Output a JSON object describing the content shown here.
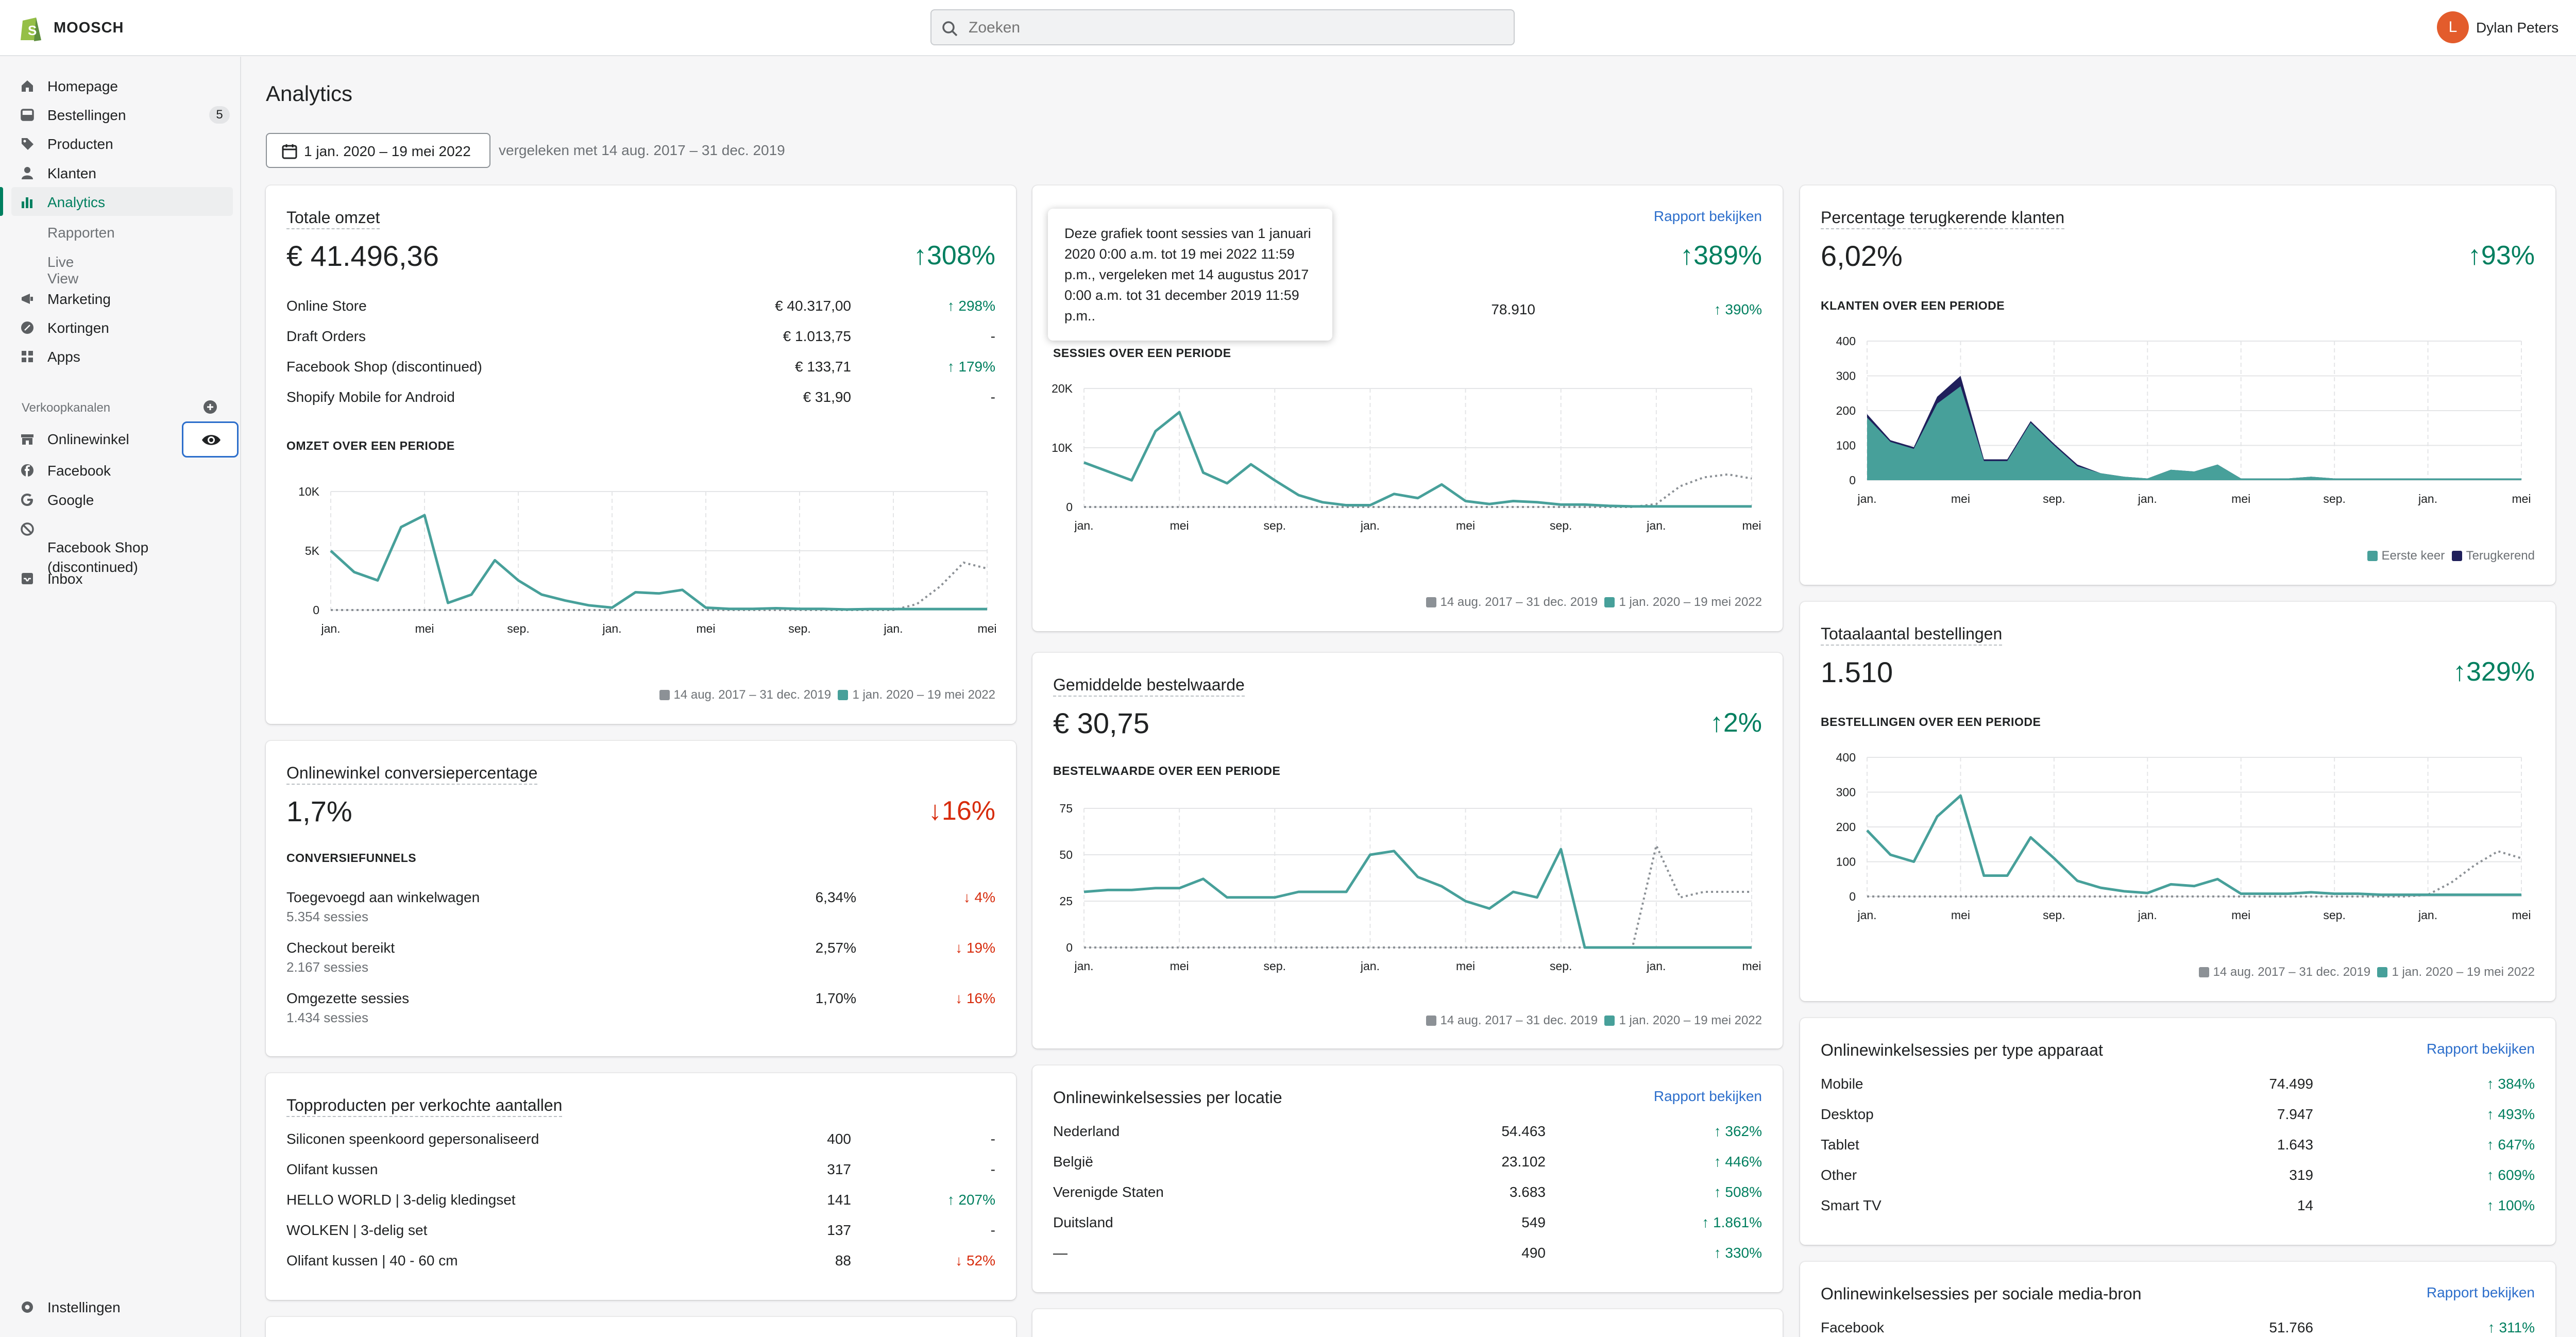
{
  "topbar": {
    "store_name": "MOOSCH",
    "search_placeholder": "Zoeken",
    "user_initial": "L",
    "user_name": "Dylan Peters"
  },
  "sidebar": {
    "items": [
      {
        "label": "Homepage",
        "icon": "home-icon"
      },
      {
        "label": "Bestellingen",
        "icon": "orders-icon",
        "badge": "5"
      },
      {
        "label": "Producten",
        "icon": "tag-icon"
      },
      {
        "label": "Klanten",
        "icon": "person-icon"
      },
      {
        "label": "Analytics",
        "icon": "analytics-icon",
        "active": true
      }
    ],
    "analytics_sub": [
      "Rapporten",
      "Live View"
    ],
    "items2": [
      {
        "label": "Marketing",
        "icon": "marketing-icon"
      },
      {
        "label": "Kortingen",
        "icon": "discount-icon"
      },
      {
        "label": "Apps",
        "icon": "apps-icon"
      }
    ],
    "channels_title": "Verkoopkanalen",
    "channels": [
      {
        "label": "Onlinewinkel",
        "icon": "store-icon"
      },
      {
        "label": "Facebook",
        "icon": "facebook-icon"
      },
      {
        "label": "Google",
        "icon": "google-icon"
      },
      {
        "label": "Facebook Shop",
        "label2": "(discontinued)",
        "icon": "blocked-icon"
      },
      {
        "label": "Inbox",
        "icon": "inbox-icon"
      }
    ],
    "settings": "Instellingen"
  },
  "page": {
    "title": "Analytics",
    "date_range": "1 jan. 2020 – 19 mei 2022",
    "compare": "vergeleken met 14 aug. 2017 – 31 dec. 2019"
  },
  "legend": {
    "prev": "14 aug. 2017 – 31 dec. 2019",
    "curr": "1 jan. 2020 – 19 mei 2022"
  },
  "colors": {
    "current": "#47a09a",
    "previous": "#8c9196",
    "green": "#007f5f",
    "red": "#d72c0d",
    "link": "#2c6ecb"
  },
  "xticks": [
    "jan.",
    "mei",
    "sep.",
    "jan.",
    "mei",
    "sep.",
    "jan.",
    "mei"
  ],
  "sales": {
    "title": "Totale omzet",
    "value": "€ 41.496,36",
    "change": "308%",
    "rows": [
      {
        "name": "Online Store",
        "value": "€ 40.317,00",
        "change": "298%",
        "dir": "up"
      },
      {
        "name": "Draft Orders",
        "value": "€ 1.013,75",
        "change": "-",
        "dir": ""
      },
      {
        "name": "Facebook Shop (discontinued)",
        "value": "€ 133,71",
        "change": "179%",
        "dir": "up"
      },
      {
        "name": "Shopify Mobile for Android",
        "value": "€ 31,90",
        "change": "-",
        "dir": ""
      }
    ],
    "chart_caption": "OMZET OVER EEN PERIODE"
  },
  "sessions": {
    "link": "Rapport bekijken",
    "change": "389%",
    "row_value": "78.910",
    "row_change": "390%",
    "tooltip": "Deze grafiek toont sessies van 1 januari 2020 0:00 a.m. tot 19 mei 2022 11:59 p.m., vergeleken met 14 augustus 2017 0:00 a.m. tot 31 december 2019 11:59 p.m..",
    "chart_caption": "SESSIES OVER EEN PERIODE"
  },
  "returning": {
    "title": "Percentage terugkerende klanten",
    "value": "6,02%",
    "change": "93%",
    "chart_caption": "KLANTEN OVER EEN PERIODE",
    "legend_first": "Eerste keer",
    "legend_returning": "Terugkerend"
  },
  "conversion": {
    "title": "Onlinewinkel conversiepercentage",
    "value": "1,7%",
    "change": "16%",
    "funnel_caption": "CONVERSIEFUNNELS",
    "rows": [
      {
        "name": "Toegevoegd aan winkelwagen",
        "sub": "5.354 sessies",
        "value": "6,34%",
        "change": "4%"
      },
      {
        "name": "Checkout bereikt",
        "sub": "2.167 sessies",
        "value": "2,57%",
        "change": "19%"
      },
      {
        "name": "Omgezette sessies",
        "sub": "1.434 sessies",
        "value": "1,70%",
        "change": "16%"
      }
    ]
  },
  "aov": {
    "title": "Gemiddelde bestelwaarde",
    "value": "€ 30,75",
    "change": "2%",
    "chart_caption": "BESTELWAARDE OVER EEN PERIODE"
  },
  "orders": {
    "title": "Totaalaantal bestellingen",
    "value": "1.510",
    "change": "329%",
    "chart_caption": "BESTELLINGEN OVER EEN PERIODE"
  },
  "top_products": {
    "title": "Topproducten per verkochte aantallen",
    "rows": [
      {
        "name": "Siliconen speenkoord gepersonaliseerd",
        "value": "400",
        "change": "-",
        "dir": ""
      },
      {
        "name": "Olifant kussen",
        "value": "317",
        "change": "-",
        "dir": ""
      },
      {
        "name": "HELLO WORLD | 3-delig kledingset",
        "value": "141",
        "change": "207%",
        "dir": "up"
      },
      {
        "name": "WOLKEN | 3-delig set",
        "value": "137",
        "change": "-",
        "dir": ""
      },
      {
        "name": "Olifant kussen | 40 - 60 cm",
        "value": "88",
        "change": "52%",
        "dir": "down"
      }
    ]
  },
  "location": {
    "title": "Onlinewinkelsessies per locatie",
    "link": "Rapport bekijken",
    "rows": [
      {
        "name": "Nederland",
        "value": "54.463",
        "change": "362%"
      },
      {
        "name": "België",
        "value": "23.102",
        "change": "446%"
      },
      {
        "name": "Verenigde Staten",
        "value": "3.683",
        "change": "508%"
      },
      {
        "name": "Duitsland",
        "value": "549",
        "change": "1.861%"
      },
      {
        "name": "—",
        "value": "490",
        "change": "330%"
      }
    ]
  },
  "device": {
    "title": "Onlinewinkelsessies per type apparaat",
    "link": "Rapport bekijken",
    "rows": [
      {
        "name": "Mobile",
        "value": "74.499",
        "change": "384%"
      },
      {
        "name": "Desktop",
        "value": "7.947",
        "change": "493%"
      },
      {
        "name": "Tablet",
        "value": "1.643",
        "change": "647%"
      },
      {
        "name": "Other",
        "value": "319",
        "change": "609%"
      },
      {
        "name": "Smart TV",
        "value": "14",
        "change": "100%"
      }
    ]
  },
  "social": {
    "title": "Onlinewinkelsessies per sociale media-bron",
    "link": "Rapport bekijken",
    "rows": [
      {
        "name": "Facebook",
        "value": "51.766",
        "change": "311%"
      }
    ]
  },
  "chart_data": [
    {
      "type": "line",
      "title": "OMZET OVER EEN PERIODE",
      "ytick_labels": [
        "0",
        "5K",
        "10K"
      ],
      "ylim": [
        0,
        10000
      ],
      "series": [
        {
          "name": "1 jan. 2020 – 19 mei 2022",
          "values": [
            5000,
            3200,
            2500,
            7000,
            8000,
            600,
            1300,
            4200,
            2500,
            1300,
            800,
            400,
            200,
            1500,
            1400,
            1700,
            200,
            100,
            100,
            150,
            100,
            100,
            50,
            80,
            80,
            80,
            80,
            80,
            80
          ]
        },
        {
          "name": "14 aug. 2017 – 31 dec. 2019",
          "values": [
            0,
            0,
            0,
            0,
            0,
            0,
            0,
            0,
            0,
            0,
            0,
            0,
            0,
            0,
            0,
            0,
            0,
            0,
            0,
            0,
            0,
            0,
            0,
            0,
            0,
            500,
            2000,
            4000,
            3500
          ]
        }
      ]
    },
    {
      "type": "line",
      "title": "SESSIES OVER EEN PERIODE",
      "ytick_labels": [
        "0",
        "10K",
        "20K"
      ],
      "ylim": [
        0,
        20000
      ],
      "series": [
        {
          "name": "1 jan. 2020 – 19 mei 2022",
          "values": [
            7500,
            6000,
            4500,
            12800,
            16000,
            5800,
            4000,
            7200,
            4500,
            2000,
            800,
            300,
            300,
            2200,
            1500,
            3800,
            1000,
            500,
            1000,
            800,
            400,
            400,
            200,
            100,
            100,
            100,
            100,
            100,
            100
          ]
        },
        {
          "name": "14 aug. 2017 – 31 dec. 2019",
          "values": [
            0,
            0,
            0,
            0,
            0,
            0,
            0,
            0,
            0,
            0,
            0,
            0,
            0,
            0,
            0,
            0,
            0,
            0,
            0,
            0,
            0,
            0,
            0,
            0,
            500,
            3500,
            5000,
            5500,
            4800
          ]
        }
      ]
    },
    {
      "type": "area",
      "title": "KLANTEN OVER EEN PERIODE",
      "ylim": [
        0,
        400
      ],
      "yticks": [
        0,
        100,
        200,
        300,
        400
      ],
      "series": [
        {
          "name": "Eerste keer",
          "values": [
            180,
            110,
            90,
            220,
            270,
            55,
            55,
            165,
            100,
            40,
            20,
            10,
            5,
            30,
            25,
            45,
            5,
            5,
            5,
            10,
            5,
            5,
            5,
            5,
            5,
            5,
            5,
            5,
            5
          ]
        },
        {
          "name": "Terugkerend",
          "values": [
            10,
            5,
            5,
            20,
            30,
            5,
            5,
            5,
            5,
            5,
            0,
            0,
            0,
            0,
            0,
            0,
            0,
            0,
            0,
            0,
            0,
            0,
            0,
            0,
            0,
            0,
            0,
            0,
            0
          ]
        }
      ]
    },
    {
      "type": "line",
      "title": "BESTELWAARDE OVER EEN PERIODE",
      "ylim": [
        0,
        75
      ],
      "yticks": [
        0,
        25,
        50,
        75
      ],
      "series": [
        {
          "name": "1 jan. 2020 – 19 mei 2022",
          "values": [
            30,
            31,
            31,
            32,
            32,
            37,
            27,
            27,
            27,
            30,
            30,
            30,
            50,
            52,
            38,
            33,
            25,
            21,
            30,
            27,
            53,
            0,
            0,
            0,
            0,
            0,
            0,
            0,
            0
          ]
        },
        {
          "name": "14 aug. 2017 – 31 dec. 2019",
          "values": [
            0,
            0,
            0,
            0,
            0,
            0,
            0,
            0,
            0,
            0,
            0,
            0,
            0,
            0,
            0,
            0,
            0,
            0,
            0,
            0,
            0,
            0,
            0,
            0,
            55,
            27,
            30,
            30,
            30
          ]
        }
      ]
    },
    {
      "type": "line",
      "title": "BESTELLINGEN OVER EEN PERIODE",
      "ylim": [
        0,
        400
      ],
      "yticks": [
        0,
        100,
        200,
        300,
        400
      ],
      "series": [
        {
          "name": "1 jan. 2020 – 19 mei 2022",
          "values": [
            190,
            120,
            100,
            230,
            290,
            60,
            60,
            170,
            110,
            45,
            25,
            15,
            10,
            35,
            30,
            50,
            8,
            8,
            8,
            12,
            8,
            8,
            5,
            5,
            5,
            5,
            5,
            5,
            5
          ]
        },
        {
          "name": "14 aug. 2017 – 31 dec. 2019",
          "values": [
            0,
            0,
            0,
            0,
            0,
            0,
            0,
            0,
            0,
            0,
            0,
            0,
            0,
            0,
            0,
            0,
            0,
            0,
            0,
            0,
            0,
            0,
            0,
            0,
            5,
            40,
            90,
            130,
            110
          ]
        }
      ]
    }
  ]
}
